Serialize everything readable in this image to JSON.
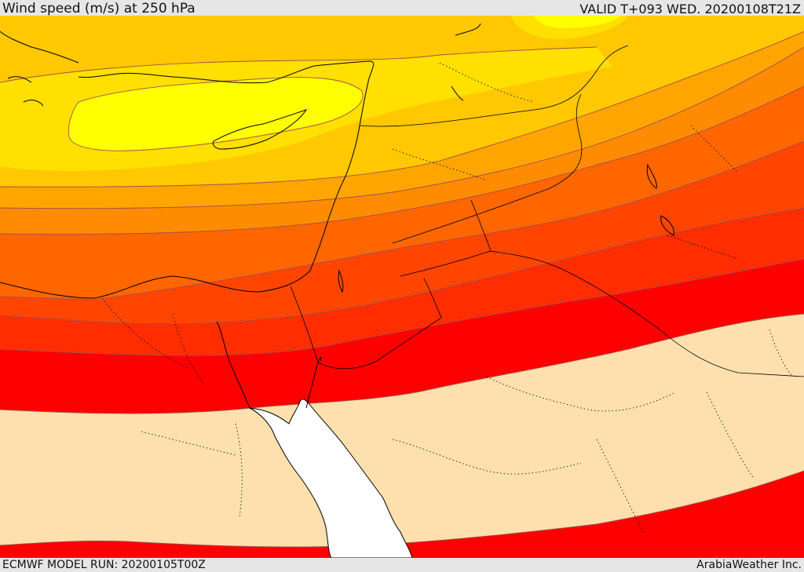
{
  "header": {
    "title": "Wind speed (m/s) at 250 hPa",
    "valid_time": "VALID T+093 WED. 20200108T21Z"
  },
  "footer": {
    "model_run": "ECMWF MODEL RUN: 20200105T00Z",
    "credit": "ArabiaWeather Inc."
  },
  "map": {
    "palette": {
      "bright_yellow": "#ffff00",
      "yellow": "#ffe000",
      "gold": "#ffc800",
      "orange_light": "#ffa500",
      "orange": "#ff8c00",
      "dark_orange": "#ff6600",
      "red_orange": "#ff4500",
      "orange_red": "#ff2d00",
      "red": "#ff0000",
      "calm_fill": "#fde0ad",
      "sea_unfilled": "#ffffff",
      "contour_line": "#a05050",
      "coastline": "#000000",
      "border_line": "#000000"
    }
  }
}
